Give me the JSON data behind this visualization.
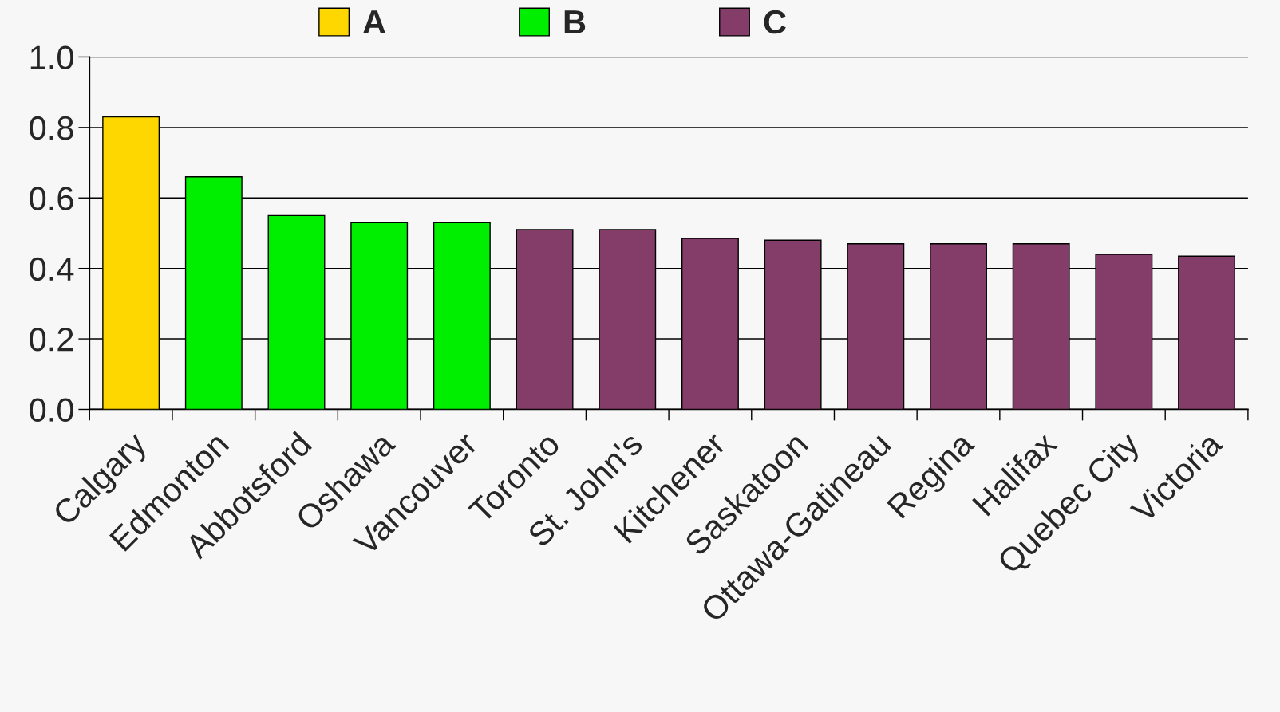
{
  "chart_data": {
    "type": "bar",
    "categories": [
      "Calgary",
      "Edmonton",
      "Abbotsford",
      "Oshawa",
      "Vancouver",
      "Toronto",
      "St. John's",
      "Kitchener",
      "Saskatoon",
      "Ottawa-Gatineau",
      "Regina",
      "Halifax",
      "Quebec City",
      "Victoria"
    ],
    "series": [
      {
        "name": "A",
        "color": "#ffd700",
        "values": [
          0.83,
          null,
          null,
          null,
          null,
          null,
          null,
          null,
          null,
          null,
          null,
          null,
          null,
          null
        ]
      },
      {
        "name": "B",
        "color": "#00ee00",
        "values": [
          null,
          0.66,
          0.55,
          0.53,
          0.53,
          null,
          null,
          null,
          null,
          null,
          null,
          null,
          null,
          null
        ]
      },
      {
        "name": "C",
        "color": "#843c68",
        "values": [
          null,
          null,
          null,
          null,
          null,
          0.51,
          0.51,
          0.485,
          0.48,
          0.47,
          0.47,
          0.47,
          0.44,
          0.435
        ]
      }
    ],
    "ylim": [
      0,
      1.0
    ],
    "yticks": [
      {
        "value": 0,
        "label": "0.0"
      },
      0.2,
      0.4,
      0.6,
      0.8,
      {
        "value": 1.0,
        "label": "1.0"
      }
    ],
    "grid": "y",
    "legend": "top"
  }
}
